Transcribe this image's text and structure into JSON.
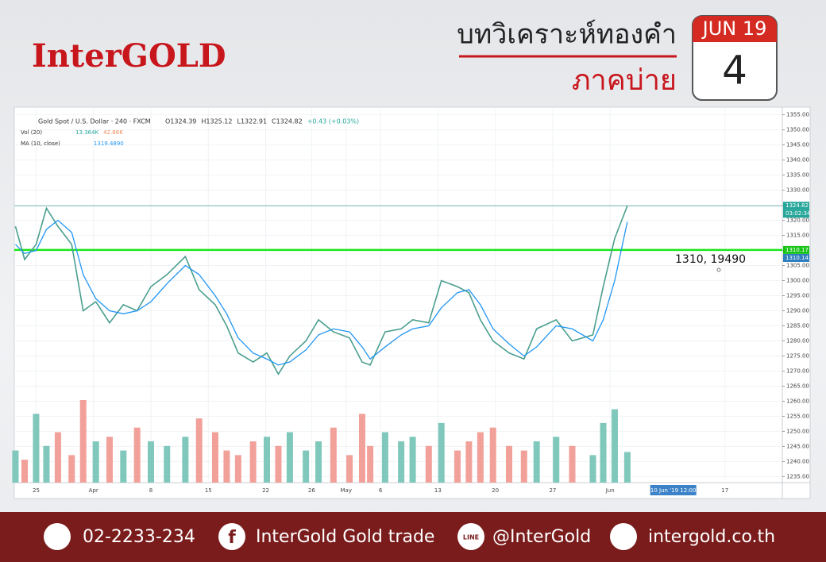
{
  "header": {
    "logo": "InterGOLD",
    "title": "บทวิเคราะห์ทองคำ",
    "subtitle": "ภาคบ่าย",
    "calendar": {
      "month": "JUN 19",
      "day": "4"
    }
  },
  "chart_data": {
    "type": "line",
    "symbol": "Gold Spot / U.S. Dollar · 240 · FXCM",
    "ohlc_text": [
      "O1324.39",
      "H1325.12",
      "L1322.91",
      "C1324.82",
      "+0.43 (+0.03%)"
    ],
    "indicators": [
      {
        "name": "Vol (20)",
        "readings": [
          "13.364K",
          "42.86K"
        ]
      },
      {
        "name": "MA (10, close)",
        "readings": [
          "1319.4890"
        ]
      }
    ],
    "x": [
      -1.8,
      -1,
      0,
      0.9,
      1.9,
      3.1,
      4.1,
      5.2,
      6.4,
      7.6,
      8.8,
      10,
      11.4,
      13,
      14.2,
      15.6,
      16.6,
      17.6,
      18.9,
      20.1,
      21.1,
      22.1,
      23.5,
      24.6,
      25.9,
      27.3,
      28.4,
      29.1,
      30.4,
      31.8,
      32.8,
      34.2,
      35.3,
      36.7,
      37.7,
      38.7,
      39.8,
      41.2,
      42.5,
      43.6,
      45.3,
      46.7,
      48.5,
      49.4,
      50.4,
      51.5
    ],
    "series": [
      {
        "name": "Gold Spot / U.S. Dollar",
        "color": "#4a9e8e",
        "values": [
          1318,
          1307,
          1312,
          1324,
          1318,
          1312,
          1290,
          1293,
          1286,
          1292,
          1290,
          1298,
          1302,
          1308,
          1297,
          1292,
          1285,
          1276,
          1273,
          1276,
          1269,
          1275,
          1280,
          1287,
          1283,
          1281,
          1273,
          1272,
          1283,
          1284,
          1287,
          1286,
          1300,
          1298,
          1296,
          1287,
          1280,
          1276,
          1274,
          1284,
          1287,
          1280,
          1282,
          1298,
          1314,
          1324.82
        ]
      },
      {
        "name": "MA (10, close)",
        "color": "#2196f3",
        "values": [
          1312,
          1309,
          1310,
          1317,
          1320,
          1316,
          1302,
          1294,
          1290,
          1289,
          1290,
          1293,
          1299,
          1305,
          1302,
          1295,
          1289,
          1281,
          1276,
          1274,
          1272,
          1273,
          1277,
          1282,
          1284,
          1283,
          1278,
          1274,
          1278,
          1282,
          1284,
          1285,
          1291,
          1296,
          1297,
          1292,
          1284,
          1279,
          1275,
          1278,
          1285,
          1284,
          1280,
          1287,
          1300,
          1319.489
        ]
      },
      {
        "name": "Vol (20)",
        "axis": "volume",
        "color": "#7fc8bb",
        "down_color": "#f2a19a",
        "values": [
          14,
          10,
          30,
          16,
          22,
          12,
          36,
          18,
          20,
          14,
          24,
          18,
          16,
          20,
          28,
          22,
          14,
          12,
          18,
          20,
          16,
          22,
          14,
          18,
          24,
          12,
          30,
          16,
          22,
          18,
          20,
          16,
          26,
          14,
          18,
          22,
          24,
          16,
          14,
          18,
          20,
          16,
          12,
          26,
          32,
          13.364
        ]
      }
    ],
    "xlim": [
      -1.9,
      65
    ],
    "ylim": [
      1233,
      1357
    ],
    "vlim": [
      0,
      45
    ],
    "grid": true,
    "xticks": [
      {
        "value": 0,
        "label": "25"
      },
      {
        "value": 5,
        "label": "Apr"
      },
      {
        "value": 10,
        "label": "8"
      },
      {
        "value": 15,
        "label": "15"
      },
      {
        "value": 20,
        "label": "22"
      },
      {
        "value": 24,
        "label": "26"
      },
      {
        "value": 27,
        "label": "May"
      },
      {
        "value": 30,
        "label": "6"
      },
      {
        "value": 35,
        "label": "13"
      },
      {
        "value": 40,
        "label": "20"
      },
      {
        "value": 45,
        "label": "27"
      },
      {
        "value": 50,
        "label": "Jun"
      },
      {
        "value": 60,
        "label": "17"
      }
    ],
    "crosshair": {
      "x": 55.5,
      "label": "10 Jun '19  12:00"
    },
    "yticks": [
      {
        "value": 1235,
        "label": "1235.00"
      },
      {
        "value": 1240,
        "label": "1240.00"
      },
      {
        "value": 1245,
        "label": "1245.00"
      },
      {
        "value": 1250,
        "label": "1250.00"
      },
      {
        "value": 1255,
        "label": "1255.00"
      },
      {
        "value": 1260,
        "label": "1260.00"
      },
      {
        "value": 1265,
        "label": "1265.00"
      },
      {
        "value": 1270,
        "label": "1270.00"
      },
      {
        "value": 1275,
        "label": "1275.00"
      },
      {
        "value": 1280,
        "label": "1280.00"
      },
      {
        "value": 1285,
        "label": "1285.00"
      },
      {
        "value": 1290,
        "label": "1290.00"
      },
      {
        "value": 1295,
        "label": "1295.00"
      },
      {
        "value": 1300,
        "label": "1300.00"
      },
      {
        "value": 1305,
        "label": "1305.00"
      },
      {
        "value": 1310,
        "label": "1310.00"
      },
      {
        "value": 1315,
        "label": "1315.00"
      },
      {
        "value": 1320,
        "label": "1320.00"
      },
      {
        "value": 1325,
        "label": "1325.00"
      },
      {
        "value": 1330,
        "label": "1330.00"
      },
      {
        "value": 1335,
        "label": "1335.00"
      },
      {
        "value": 1340,
        "label": "1340.00"
      },
      {
        "value": 1345,
        "label": "1345.00"
      },
      {
        "value": 1350,
        "label": "1350.00"
      },
      {
        "value": 1355,
        "label": "1355.00"
      }
    ],
    "price_lines": [
      {
        "value": 1324.82,
        "color": "#7fb7b5",
        "tag_color": "#26a69a",
        "note": "03:02:34"
      },
      {
        "value": 1310.17,
        "color": "#19e619",
        "tag_color": "#19c419"
      }
    ],
    "price_tags": [
      {
        "value": 1310.14,
        "color": "#2f7fbf"
      }
    ],
    "annotation": {
      "label": "1310, 19490"
    }
  },
  "footer": {
    "phone": "02-2233-234",
    "facebook": "InterGold Gold trade",
    "line": "@InterGold",
    "website": "intergold.co.th"
  }
}
